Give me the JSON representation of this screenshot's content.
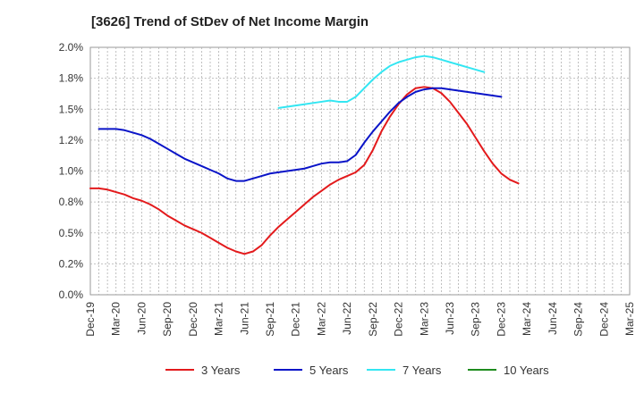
{
  "chart_data": {
    "type": "line",
    "title": "[3626]  Trend of StDev of Net Income Margin",
    "xlabel": "",
    "ylabel": "",
    "ylim": [
      0,
      2.0
    ],
    "y_ticks": [
      0,
      0.25,
      0.5,
      0.75,
      1.0,
      1.25,
      1.5,
      1.75,
      2.0
    ],
    "y_tick_labels": [
      "0.0%",
      "0.2%",
      "0.5%",
      "0.8%",
      "1.0%",
      "1.2%",
      "1.5%",
      "1.8%",
      "2.0%"
    ],
    "x_tick_labels": [
      "Dec-19",
      "Mar-20",
      "Jun-20",
      "Sep-20",
      "Dec-20",
      "Mar-21",
      "Jun-21",
      "Sep-21",
      "Dec-21",
      "Mar-22",
      "Jun-22",
      "Sep-22",
      "Dec-22",
      "Mar-23",
      "Jun-23",
      "Sep-23",
      "Dec-23",
      "Mar-24",
      "Jun-24",
      "Sep-24",
      "Dec-24",
      "Mar-25"
    ],
    "grid": true,
    "legend_position": "bottom",
    "series": [
      {
        "name": "3 Years",
        "color": "#e31a1c",
        "start_index": 0,
        "values": [
          0.86,
          0.86,
          0.85,
          0.83,
          0.81,
          0.78,
          0.76,
          0.73,
          0.69,
          0.64,
          0.6,
          0.56,
          0.53,
          0.5,
          0.46,
          0.42,
          0.38,
          0.35,
          0.33,
          0.35,
          0.4,
          0.48,
          0.55,
          0.61,
          0.67,
          0.73,
          0.79,
          0.84,
          0.89,
          0.93,
          0.96,
          0.99,
          1.05,
          1.17,
          1.32,
          1.44,
          1.54,
          1.62,
          1.67,
          1.68,
          1.67,
          1.63,
          1.56,
          1.47,
          1.38,
          1.27,
          1.16,
          1.06,
          0.98,
          0.93,
          0.9
        ]
      },
      {
        "name": "5 Years",
        "color": "#0a14c8",
        "start_index": 1,
        "values": [
          1.34,
          1.34,
          1.34,
          1.33,
          1.31,
          1.29,
          1.26,
          1.22,
          1.18,
          1.14,
          1.1,
          1.07,
          1.04,
          1.01,
          0.98,
          0.94,
          0.92,
          0.92,
          0.94,
          0.96,
          0.98,
          0.99,
          1.0,
          1.01,
          1.02,
          1.04,
          1.06,
          1.07,
          1.07,
          1.08,
          1.13,
          1.23,
          1.32,
          1.4,
          1.48,
          1.55,
          1.6,
          1.64,
          1.66,
          1.67,
          1.67,
          1.66,
          1.65,
          1.64,
          1.63,
          1.62,
          1.61,
          1.6
        ]
      },
      {
        "name": "7 Years",
        "color": "#33e6f2",
        "start_index": 22,
        "values": [
          1.51,
          1.52,
          1.53,
          1.54,
          1.55,
          1.56,
          1.57,
          1.56,
          1.56,
          1.6,
          1.67,
          1.74,
          1.8,
          1.85,
          1.88,
          1.9,
          1.92,
          1.93,
          1.92,
          1.9,
          1.88,
          1.86,
          1.84,
          1.82,
          1.8
        ]
      },
      {
        "name": "10 Years",
        "color": "#1e8c1e",
        "start_index": 0,
        "values": []
      }
    ]
  }
}
